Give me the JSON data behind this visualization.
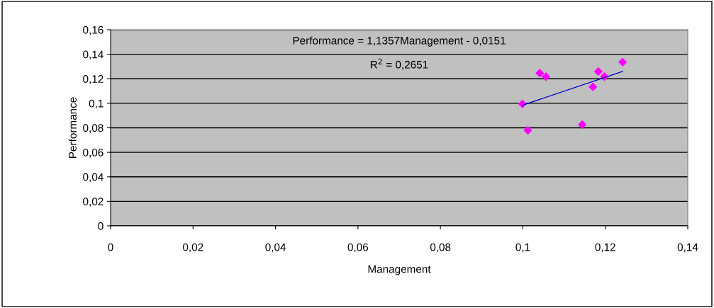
{
  "chart_data": {
    "type": "scatter",
    "xlabel": "Management",
    "ylabel": "Performance",
    "x": [
      0.0999,
      0.1012,
      0.1041,
      0.1056,
      0.1144,
      0.117,
      0.1183,
      0.1198,
      0.1242
    ],
    "series": [
      {
        "color": "#ff00ff",
        "marker": "diamond",
        "values": [
          0.0995,
          0.078,
          0.1246,
          0.1217,
          0.0826,
          0.1134,
          0.1259,
          0.1217,
          0.1336
        ]
      },
      {
        "type": "line",
        "color": "#0000cc",
        "marker": "none",
        "x": [
          0.0999,
          0.1242
        ],
        "values": [
          0.0984,
          0.126
        ]
      }
    ],
    "annotations": [
      "Performance = 1,1357Management - 0,0151",
      "R$^{2}$ = 0,2651"
    ],
    "xlim": [
      0,
      0.14
    ],
    "ylim": [
      0,
      0.16
    ],
    "xticks": [
      0,
      {
        "value": 0.02,
        "label": "0,02"
      },
      {
        "value": 0.04,
        "label": "0,04"
      },
      {
        "value": 0.06,
        "label": "0,06"
      },
      {
        "value": 0.08,
        "label": "0,08"
      },
      {
        "value": 0.1,
        "label": "0,1"
      },
      {
        "value": 0.12,
        "label": "0,12"
      },
      {
        "value": 0.14,
        "label": "0,14"
      }
    ],
    "yticks": [
      0,
      {
        "value": 0.02,
        "label": "0,02"
      },
      {
        "value": 0.04,
        "label": "0,04"
      },
      {
        "value": 0.06,
        "label": "0,06"
      },
      {
        "value": 0.08,
        "label": "0,08"
      },
      {
        "value": 0.1,
        "label": "0,1"
      },
      {
        "value": 0.12,
        "label": "0,12"
      },
      {
        "value": 0.14,
        "label": "0,14"
      },
      {
        "value": 0.16,
        "label": "0,16"
      }
    ],
    "grid": "y"
  }
}
